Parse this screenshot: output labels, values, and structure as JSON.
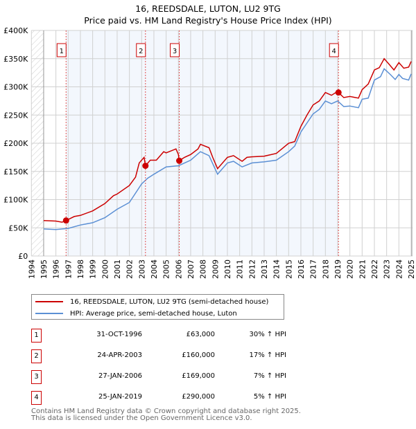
{
  "title_line1": "16, REEDSDALE, LUTON, LU2 9TG",
  "title_line2": "Price paid vs. HM Land Registry's House Price Index (HPI)",
  "chart_data": {
    "type": "line",
    "title": "16, REEDSDALE, LUTON, LU2 9TG — Price paid vs. HM Land Registry's House Price Index (HPI)",
    "xlim": [
      1994,
      2025
    ],
    "ylim": [
      0,
      400000
    ],
    "x_ticks": [
      "1994",
      "1995",
      "1996",
      "1997",
      "1998",
      "1999",
      "2000",
      "2001",
      "2002",
      "2003",
      "2004",
      "2005",
      "2006",
      "2007",
      "2008",
      "2009",
      "2010",
      "2011",
      "2012",
      "2013",
      "2014",
      "2015",
      "2016",
      "2017",
      "2018",
      "2019",
      "2020",
      "2021",
      "2022",
      "2023",
      "2024",
      "2025"
    ],
    "y_ticks": [
      {
        "v": 0,
        "label": "£0"
      },
      {
        "v": 50000,
        "label": "£50K"
      },
      {
        "v": 100000,
        "label": "£100K"
      },
      {
        "v": 150000,
        "label": "£150K"
      },
      {
        "v": 200000,
        "label": "£200K"
      },
      {
        "v": 250000,
        "label": "£250K"
      },
      {
        "v": 300000,
        "label": "£300K"
      },
      {
        "v": 350000,
        "label": "£350K"
      },
      {
        "v": 400000,
        "label": "£400K"
      }
    ],
    "grid": true,
    "series": [
      {
        "name": "16, REEDSDALE, LUTON, LU2 9TG (semi-detached house)",
        "color": "#cc0000",
        "x": [
          1995,
          1996,
          1996.5,
          1996.83,
          1997.5,
          1998,
          1999,
          2000,
          2000.7,
          2001,
          2002,
          2002.5,
          2002.8,
          2003.2,
          2003.31,
          2003.7,
          2004.2,
          2004.8,
          2005,
          2005.8,
          2006,
          2006.07,
          2006.5,
          2007,
          2007.6,
          2007.8,
          2008.5,
          2008.8,
          2009.2,
          2010,
          2010.5,
          2011.2,
          2011.6,
          2012,
          2013,
          2014,
          2015,
          2015.5,
          2016,
          2016.5,
          2017,
          2017.5,
          2018,
          2018.5,
          2019,
          2019.07,
          2019.5,
          2020,
          2020.7,
          2021,
          2021.5,
          2022,
          2022.4,
          2022.8,
          2023.2,
          2023.6,
          2024,
          2024.4,
          2024.8,
          2025
        ],
        "y": [
          63000,
          62000,
          60000,
          63000,
          70000,
          72000,
          80000,
          93000,
          107000,
          110000,
          125000,
          140000,
          165000,
          175000,
          160000,
          170000,
          170000,
          185000,
          183000,
          190000,
          180000,
          169000,
          175000,
          180000,
          190000,
          198000,
          192000,
          175000,
          155000,
          175000,
          178000,
          168000,
          175000,
          176000,
          177000,
          182000,
          200000,
          203000,
          230000,
          250000,
          268000,
          275000,
          290000,
          285000,
          292000,
          290000,
          281000,
          283000,
          280000,
          295000,
          305000,
          330000,
          334000,
          350000,
          340000,
          330000,
          343000,
          333000,
          335000,
          345000
        ]
      },
      {
        "name": "HPI: Average price, semi-detached house, Luton",
        "color": "#5b8fd4",
        "x": [
          1995,
          1996,
          1997,
          1998,
          1999,
          2000,
          2001,
          2002,
          2003,
          2003.5,
          2004,
          2005,
          2006,
          2007,
          2007.8,
          2008.5,
          2009.2,
          2010,
          2010.5,
          2011.2,
          2012,
          2013,
          2014,
          2015,
          2015.5,
          2016,
          2017,
          2017.5,
          2018,
          2018.5,
          2019,
          2019.5,
          2020,
          2020.7,
          2021,
          2021.5,
          2022,
          2022.5,
          2022.8,
          2023.3,
          2023.7,
          2024,
          2024.3,
          2024.8,
          2025
        ],
        "y": [
          48000,
          47000,
          49000,
          55000,
          59000,
          68000,
          83000,
          95000,
          128000,
          138000,
          145000,
          158000,
          160000,
          170000,
          185000,
          178000,
          145000,
          165000,
          168000,
          158000,
          165000,
          167000,
          170000,
          185000,
          195000,
          220000,
          252000,
          260000,
          275000,
          270000,
          275000,
          265000,
          266000,
          263000,
          278000,
          280000,
          312000,
          318000,
          332000,
          322000,
          313000,
          322000,
          315000,
          312000,
          323000
        ]
      }
    ],
    "sales": [
      {
        "label": "1",
        "x": 1996.83,
        "y": 63000,
        "date": "31-OCT-1996",
        "price": "£63,000",
        "hpi": "30% ↑ HPI"
      },
      {
        "label": "2",
        "x": 2003.31,
        "y": 160000,
        "date": "24-APR-2003",
        "price": "£160,000",
        "hpi": "17% ↑ HPI"
      },
      {
        "label": "3",
        "x": 2006.07,
        "y": 169000,
        "date": "27-JAN-2006",
        "price": "£169,000",
        "hpi": "7% ↑ HPI"
      },
      {
        "label": "4",
        "x": 2019.07,
        "y": 290000,
        "date": "25-JAN-2019",
        "price": "£290,000",
        "hpi": "5% ↑ HPI"
      }
    ],
    "legend_placement": "below"
  },
  "footer_line1": "Contains HM Land Registry data © Crown copyright and database right 2025.",
  "footer_line2": "This data is licensed under the Open Government Licence v3.0."
}
